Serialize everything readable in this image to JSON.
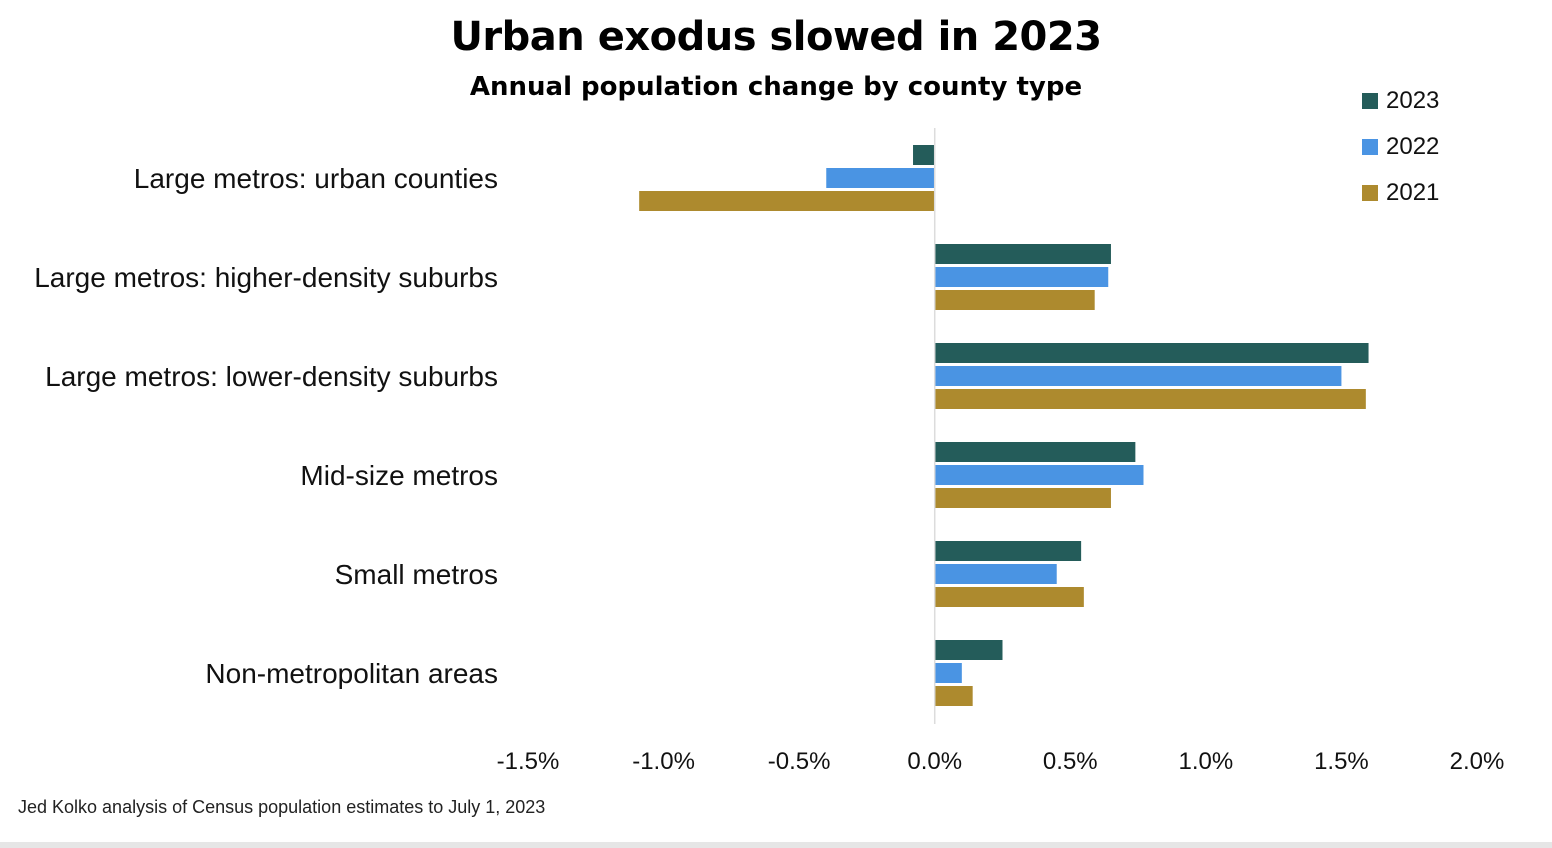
{
  "title": "Urban exodus slowed in 2023",
  "subtitle": "Annual population change by county type",
  "source": "Jed Kolko analysis of Census population estimates to July 1, 2023",
  "chart_data": {
    "type": "bar",
    "orientation": "horizontal",
    "title": "Urban exodus slowed in 2023",
    "subtitle": "Annual population change by county type",
    "categories": [
      "Large metros: urban counties",
      "Large metros: higher-density suburbs",
      "Large metros: lower-density suburbs",
      "Mid-size metros",
      "Small metros",
      "Non-metropolitan areas"
    ],
    "series": [
      {
        "name": "2023",
        "color": "#245c5a",
        "values": [
          -0.08,
          0.65,
          1.6,
          0.74,
          0.54,
          0.25
        ]
      },
      {
        "name": "2022",
        "color": "#4a94e3",
        "values": [
          -0.4,
          0.64,
          1.5,
          0.77,
          0.45,
          0.1
        ]
      },
      {
        "name": "2021",
        "color": "#ad8a2e",
        "values": [
          -1.09,
          0.59,
          1.59,
          0.65,
          0.55,
          0.14
        ]
      }
    ],
    "xlim": [
      -1.5,
      2.0
    ],
    "xticks": [
      -1.5,
      -1.0,
      -0.5,
      0.0,
      0.5,
      1.0,
      1.5,
      2.0
    ],
    "xtick_labels": [
      "-1.5%",
      "-1.0%",
      "-0.5%",
      "0.0%",
      "0.5%",
      "1.0%",
      "1.5%",
      "2.0%"
    ],
    "xlabel": "",
    "ylabel": "",
    "grid": false,
    "legend_position": "top-right"
  }
}
